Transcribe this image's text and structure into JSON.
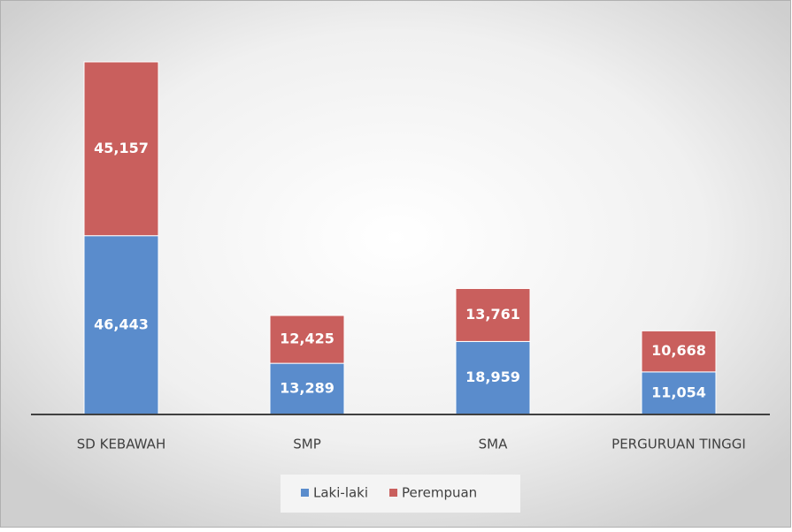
{
  "chart_data": {
    "type": "stacked_bar",
    "categories": [
      "SD KEBAWAH",
      "SMP",
      "SMA",
      "PERGURUAN TINGGI"
    ],
    "series": [
      {
        "name": "Laki-laki",
        "color": "#5a8ccc",
        "values": [
          46443,
          13289,
          18959,
          11054
        ],
        "value_labels": [
          "46,443",
          "13,289",
          "18,959",
          "11,054"
        ]
      },
      {
        "name": "Perempuan",
        "color": "#c95f5d",
        "values": [
          45157,
          12425,
          13761,
          10668
        ],
        "value_labels": [
          "45,157",
          "12,425",
          "13,761",
          "10,668"
        ]
      }
    ],
    "legend": "bottom"
  }
}
